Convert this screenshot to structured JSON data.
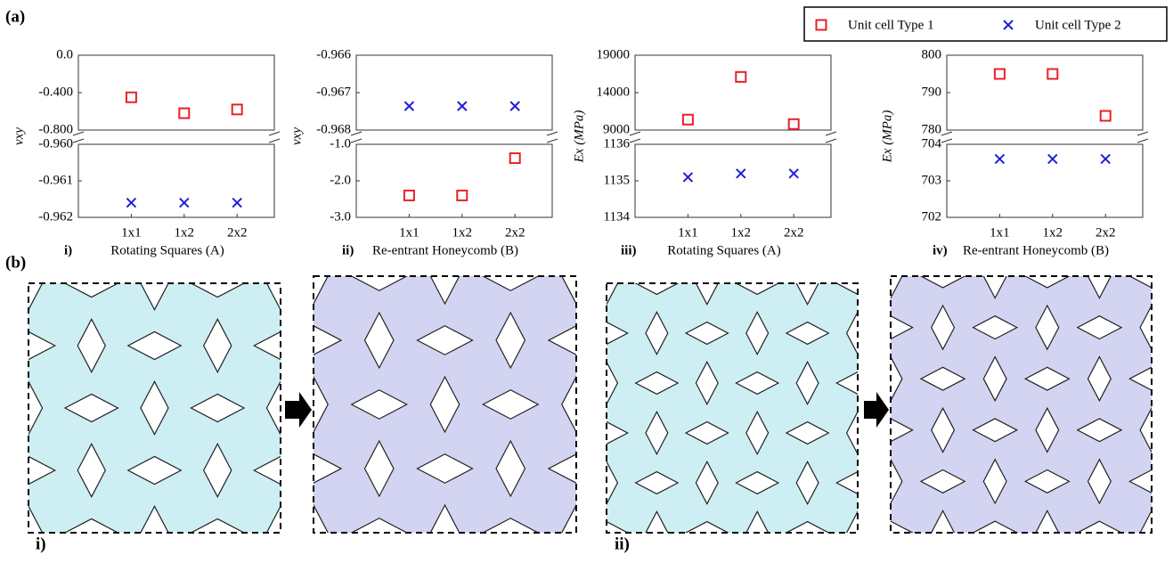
{
  "panel_a_label": "(a)",
  "panel_b_label": "(b)",
  "chart_data": [
    {
      "type": "scatter",
      "panel_label": "i)",
      "xlabel": "Rotating Squares (A)",
      "ylabel": "νxy",
      "categories": [
        "1x1",
        "1x2",
        "2x2"
      ],
      "series": [
        {
          "name": "Unit cell Type 1",
          "color": "#e8202a",
          "marker": "square",
          "values": [
            -0.45,
            -0.62,
            -0.58
          ]
        },
        {
          "name": "Unit cell Type 2",
          "color": "#1f1fd6",
          "marker": "x",
          "values": [
            -0.9616,
            -0.9616,
            -0.9616
          ]
        }
      ],
      "segments": [
        {
          "ylim": [
            -0.8,
            0
          ],
          "yticks": [
            {
              "value": 0,
              "label": "0.0"
            },
            {
              "value": -0.4,
              "label": "-0.400"
            },
            {
              "value": -0.8,
              "label": "-0.800"
            }
          ]
        },
        {
          "ylim": [
            -0.962,
            -0.96
          ],
          "yticks": [
            {
              "value": -0.96,
              "label": "-0.960"
            },
            -0.961,
            -0.962
          ]
        }
      ]
    },
    {
      "type": "scatter",
      "panel_label": "ii)",
      "xlabel": "Re-entrant Honeycomb (B)",
      "ylabel": "νxy",
      "categories": [
        "1x1",
        "1x2",
        "2x2"
      ],
      "series": [
        {
          "name": "Unit cell Type 1",
          "color": "#e8202a",
          "marker": "square",
          "values": [
            -2.4,
            -2.4,
            -1.38
          ]
        },
        {
          "name": "Unit cell Type 2",
          "color": "#1f1fd6",
          "marker": "x",
          "values": [
            -0.96736,
            -0.96736,
            -0.96736
          ]
        }
      ],
      "segments": [
        {
          "ylim": [
            -0.968,
            -0.966
          ],
          "yticks": [
            -0.966,
            -0.967,
            -0.968
          ]
        },
        {
          "ylim": [
            -3,
            -1
          ],
          "yticks": [
            {
              "value": -1,
              "label": "-1.0"
            },
            {
              "value": -2,
              "label": "-2.0"
            },
            {
              "value": -3,
              "label": "-3.0"
            }
          ]
        }
      ]
    },
    {
      "type": "scatter",
      "panel_label": "iii)",
      "xlabel": "Rotating Squares (A)",
      "ylabel": "Ex (MPa)",
      "categories": [
        "1x1",
        "1x2",
        "2x2"
      ],
      "series": [
        {
          "name": "Unit cell Type 1",
          "color": "#e8202a",
          "marker": "square",
          "values": [
            10400,
            16100,
            9800
          ]
        },
        {
          "name": "Unit cell Type 2",
          "color": "#1f1fd6",
          "marker": "x",
          "values": [
            1135.1,
            1135.2,
            1135.2
          ]
        }
      ],
      "segments": [
        {
          "ylim": [
            9000,
            19000
          ],
          "yticks": [
            19000,
            14000,
            9000
          ]
        },
        {
          "ylim": [
            1134,
            1136
          ],
          "yticks": [
            1136,
            1135,
            1134
          ]
        }
      ]
    },
    {
      "type": "scatter",
      "panel_label": "iv)",
      "xlabel": "Re-entrant Honeycomb (B)",
      "ylabel": "Ex (MPa)",
      "categories": [
        "1x1",
        "1x2",
        "2x2"
      ],
      "series": [
        {
          "name": "Unit cell Type 1",
          "color": "#e8202a",
          "marker": "square",
          "values": [
            795,
            795,
            783.8
          ]
        },
        {
          "name": "Unit cell Type 2",
          "color": "#1f1fd6",
          "marker": "x",
          "values": [
            703.6,
            703.6,
            703.6
          ]
        }
      ],
      "segments": [
        {
          "ylim": [
            780,
            800
          ],
          "yticks": [
            800,
            790,
            780
          ]
        },
        {
          "ylim": [
            702,
            704
          ],
          "yticks": [
            704,
            703,
            702
          ]
        }
      ]
    }
  ],
  "figure_b": {
    "labels": [
      "i)",
      "ii)"
    ]
  }
}
